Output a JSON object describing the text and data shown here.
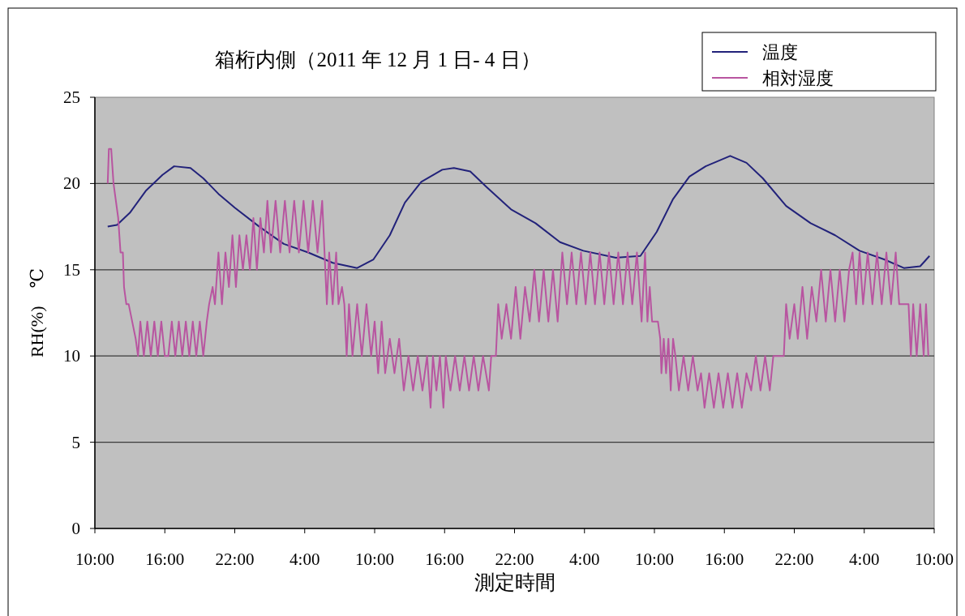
{
  "chart_data": {
    "type": "line",
    "title": "箱桁内側（2011 年 12 月 1 日- 4 日）",
    "xlabel": "測定時間",
    "ylabel": "RH(%)　℃",
    "xlim": [
      "2011-12-01T10:00",
      "2011-12-04T10:00"
    ],
    "xticks": [
      {
        "value": "2011-12-01T10:00",
        "label": "10:00"
      },
      {
        "value": "2011-12-01T16:00",
        "label": "16:00"
      },
      {
        "value": "2011-12-01T22:00",
        "label": "22:00"
      },
      {
        "value": "2011-12-02T04:00",
        "label": "4:00"
      },
      {
        "value": "2011-12-02T10:00",
        "label": "10:00"
      },
      {
        "value": "2011-12-02T16:00",
        "label": "16:00"
      },
      {
        "value": "2011-12-02T22:00",
        "label": "22:00"
      },
      {
        "value": "2011-12-03T04:00",
        "label": "4:00"
      },
      {
        "value": "2011-12-03T10:00",
        "label": "10:00"
      },
      {
        "value": "2011-12-03T16:00",
        "label": "16:00"
      },
      {
        "value": "2011-12-03T22:00",
        "label": "22:00"
      },
      {
        "value": "2011-12-04T04:00",
        "label": "4:00"
      },
      {
        "value": "2011-12-04T10:00",
        "label": "10:00"
      }
    ],
    "ylim": [
      0,
      25
    ],
    "yticks": [
      0,
      5,
      10,
      15,
      20,
      25
    ],
    "grid": "y",
    "legend": "top right",
    "series": [
      {
        "name": "温度",
        "color": "#22227a",
        "x": [
          "2011-12-01T11:06",
          "2011-12-01T11:54",
          "2011-12-01T13:00",
          "2011-12-01T14:24",
          "2011-12-01T15:48",
          "2011-12-01T16:48",
          "2011-12-01T18:12",
          "2011-12-01T19:18",
          "2011-12-01T20:36",
          "2011-12-01T22:00",
          "2011-12-02T00:06",
          "2011-12-02T02:12",
          "2011-12-02T04:18",
          "2011-12-02T06:24",
          "2011-12-02T08:30",
          "2011-12-02T09:54",
          "2011-12-02T11:18",
          "2011-12-02T12:36",
          "2011-12-02T14:00",
          "2011-12-02T15:48",
          "2011-12-02T16:48",
          "2011-12-02T18:12",
          "2011-12-02T19:36",
          "2011-12-02T21:42",
          "2011-12-02T23:48",
          "2011-12-03T01:54",
          "2011-12-03T03:54",
          "2011-12-03T06:42",
          "2011-12-03T08:48",
          "2011-12-03T10:12",
          "2011-12-03T11:36",
          "2011-12-03T13:00",
          "2011-12-03T14:24",
          "2011-12-03T16:30",
          "2011-12-03T17:54",
          "2011-12-03T19:18",
          "2011-12-03T21:18",
          "2011-12-03T23:24",
          "2011-12-04T01:30",
          "2011-12-04T03:36",
          "2011-12-04T05:42",
          "2011-12-04T07:24",
          "2011-12-04T08:48",
          "2011-12-04T09:36"
        ],
        "values": [
          17.5,
          17.6,
          18.3,
          19.6,
          20.5,
          21.0,
          20.9,
          20.3,
          19.4,
          18.6,
          17.5,
          16.5,
          16.0,
          15.4,
          15.1,
          15.6,
          17.0,
          18.9,
          20.1,
          20.8,
          20.9,
          20.7,
          19.8,
          18.5,
          17.7,
          16.6,
          16.1,
          15.7,
          15.8,
          17.2,
          19.1,
          20.4,
          21.0,
          21.6,
          21.2,
          20.3,
          18.7,
          17.7,
          17.0,
          16.1,
          15.6,
          15.1,
          15.2,
          15.8
        ]
      },
      {
        "name": "相対湿度",
        "color": "#b855a0",
        "x": [
          "2011-12-01T11:06",
          "2011-12-01T11:12",
          "2011-12-01T11:24",
          "2011-12-01T11:36",
          "2011-12-01T11:48",
          "2011-12-01T12:00",
          "2011-12-01T12:12",
          "2011-12-01T12:24",
          "2011-12-01T12:30",
          "2011-12-01T12:42",
          "2011-12-01T12:54",
          "2011-12-01T13:12",
          "2011-12-01T13:30",
          "2011-12-01T13:42",
          "2011-12-01T13:54",
          "2011-12-01T14:12",
          "2011-12-01T14:30",
          "2011-12-01T14:48",
          "2011-12-01T15:06",
          "2011-12-01T15:24",
          "2011-12-01T15:42",
          "2011-12-01T16:00",
          "2011-12-01T16:18",
          "2011-12-01T16:36",
          "2011-12-01T16:54",
          "2011-12-01T17:12",
          "2011-12-01T17:30",
          "2011-12-01T17:48",
          "2011-12-01T18:06",
          "2011-12-01T18:24",
          "2011-12-01T18:42",
          "2011-12-01T19:00",
          "2011-12-01T19:18",
          "2011-12-01T19:36",
          "2011-12-01T19:48",
          "2011-12-01T20:06",
          "2011-12-01T20:18",
          "2011-12-01T20:36",
          "2011-12-01T20:54",
          "2011-12-01T21:12",
          "2011-12-01T21:30",
          "2011-12-01T21:48",
          "2011-12-01T22:06",
          "2011-12-01T22:24",
          "2011-12-01T22:42",
          "2011-12-01T23:00",
          "2011-12-01T23:18",
          "2011-12-01T23:36",
          "2011-12-01T23:54",
          "2011-12-02T00:12",
          "2011-12-02T00:30",
          "2011-12-02T00:48",
          "2011-12-02T01:06",
          "2011-12-02T01:30",
          "2011-12-02T01:54",
          "2011-12-02T02:18",
          "2011-12-02T02:42",
          "2011-12-02T03:06",
          "2011-12-02T03:30",
          "2011-12-02T03:54",
          "2011-12-02T04:18",
          "2011-12-02T04:42",
          "2011-12-02T05:06",
          "2011-12-02T05:30",
          "2011-12-02T05:42",
          "2011-12-02T05:54",
          "2011-12-02T06:06",
          "2011-12-02T06:24",
          "2011-12-02T06:42",
          "2011-12-02T06:54",
          "2011-12-02T07:12",
          "2011-12-02T07:24",
          "2011-12-02T07:36",
          "2011-12-02T07:48",
          "2011-12-02T08:06",
          "2011-12-02T08:30",
          "2011-12-02T08:54",
          "2011-12-02T09:18",
          "2011-12-02T09:42",
          "2011-12-02T10:00",
          "2011-12-02T10:18",
          "2011-12-02T10:36",
          "2011-12-02T10:54",
          "2011-12-02T11:18",
          "2011-12-02T11:42",
          "2011-12-02T12:06",
          "2011-12-02T12:30",
          "2011-12-02T12:54",
          "2011-12-02T13:18",
          "2011-12-02T13:42",
          "2011-12-02T14:06",
          "2011-12-02T14:30",
          "2011-12-02T14:48",
          "2011-12-02T15:00",
          "2011-12-02T15:18",
          "2011-12-02T15:36",
          "2011-12-02T15:54",
          "2011-12-02T16:06",
          "2011-12-02T16:30",
          "2011-12-02T16:54",
          "2011-12-02T17:18",
          "2011-12-02T17:42",
          "2011-12-02T18:06",
          "2011-12-02T18:30",
          "2011-12-02T18:54",
          "2011-12-02T19:18",
          "2011-12-02T19:48",
          "2011-12-02T20:00",
          "2011-12-02T20:24",
          "2011-12-02T20:36",
          "2011-12-02T20:54",
          "2011-12-02T21:18",
          "2011-12-02T21:42",
          "2011-12-02T22:06",
          "2011-12-02T22:30",
          "2011-12-02T22:54",
          "2011-12-02T23:18",
          "2011-12-02T23:42",
          "2011-12-03T00:06",
          "2011-12-03T00:30",
          "2011-12-03T00:54",
          "2011-12-03T01:18",
          "2011-12-03T01:42",
          "2011-12-03T02:06",
          "2011-12-03T02:30",
          "2011-12-03T02:54",
          "2011-12-03T03:18",
          "2011-12-03T03:42",
          "2011-12-03T04:06",
          "2011-12-03T04:30",
          "2011-12-03T04:54",
          "2011-12-03T05:18",
          "2011-12-03T05:42",
          "2011-12-03T06:06",
          "2011-12-03T06:30",
          "2011-12-03T06:54",
          "2011-12-03T07:18",
          "2011-12-03T07:42",
          "2011-12-03T08:06",
          "2011-12-03T08:30",
          "2011-12-03T08:54",
          "2011-12-03T09:12",
          "2011-12-03T09:24",
          "2011-12-03T09:36",
          "2011-12-03T09:48",
          "2011-12-03T10:18",
          "2011-12-03T10:30",
          "2011-12-03T10:36",
          "2011-12-03T10:48",
          "2011-12-03T11:00",
          "2011-12-03T11:12",
          "2011-12-03T11:24",
          "2011-12-03T11:36",
          "2011-12-03T11:48",
          "2011-12-03T12:06",
          "2011-12-03T12:30",
          "2011-12-03T12:54",
          "2011-12-03T13:18",
          "2011-12-03T13:42",
          "2011-12-03T14:00",
          "2011-12-03T14:18",
          "2011-12-03T14:42",
          "2011-12-03T15:06",
          "2011-12-03T15:30",
          "2011-12-03T15:54",
          "2011-12-03T16:18",
          "2011-12-03T16:42",
          "2011-12-03T17:06",
          "2011-12-03T17:30",
          "2011-12-03T17:54",
          "2011-12-03T18:18",
          "2011-12-03T18:42",
          "2011-12-03T19:06",
          "2011-12-03T19:30",
          "2011-12-03T19:54",
          "2011-12-03T20:12",
          "2011-12-03T21:06",
          "2011-12-03T21:18",
          "2011-12-03T21:36",
          "2011-12-03T22:00",
          "2011-12-03T22:18",
          "2011-12-03T22:42",
          "2011-12-03T23:06",
          "2011-12-03T23:30",
          "2011-12-03T23:54",
          "2011-12-04T00:18",
          "2011-12-04T00:42",
          "2011-12-04T01:06",
          "2011-12-04T01:30",
          "2011-12-04T01:54",
          "2011-12-04T02:18",
          "2011-12-04T02:42",
          "2011-12-04T03:00",
          "2011-12-04T03:18",
          "2011-12-04T03:36",
          "2011-12-04T03:54",
          "2011-12-04T04:18",
          "2011-12-04T04:42",
          "2011-12-04T05:06",
          "2011-12-04T05:30",
          "2011-12-04T05:54",
          "2011-12-04T06:18",
          "2011-12-04T06:42",
          "2011-12-04T07:00",
          "2011-12-04T07:48",
          "2011-12-04T08:00",
          "2011-12-04T08:12",
          "2011-12-04T08:30",
          "2011-12-04T08:48",
          "2011-12-04T09:06",
          "2011-12-04T09:18",
          "2011-12-04T09:30"
        ],
        "values": [
          20,
          22,
          22,
          20,
          19,
          18,
          16,
          16,
          14,
          13,
          13,
          12,
          11,
          10,
          12,
          10,
          12,
          10,
          12,
          10,
          12,
          10,
          10,
          12,
          10,
          12,
          10,
          12,
          10,
          12,
          10,
          12,
          10,
          12,
          13,
          14,
          13,
          16,
          13,
          16,
          14,
          17,
          14,
          17,
          15,
          17,
          15,
          18,
          15,
          18,
          16,
          19,
          16,
          19,
          16,
          19,
          16,
          19,
          16,
          19,
          16,
          19,
          16,
          19,
          16,
          13,
          16,
          13,
          16,
          13,
          14,
          13,
          10,
          13,
          10,
          13,
          10,
          13,
          10,
          12,
          9,
          12,
          9,
          11,
          9,
          11,
          8,
          10,
          8,
          10,
          8,
          10,
          7,
          10,
          8,
          10,
          7,
          10,
          8,
          10,
          8,
          10,
          8,
          10,
          8,
          10,
          8,
          10,
          10,
          13,
          11,
          13,
          11,
          14,
          11,
          14,
          12,
          15,
          12,
          15,
          12,
          15,
          12,
          16,
          13,
          16,
          13,
          16,
          13,
          16,
          13,
          16,
          13,
          16,
          13,
          16,
          13,
          16,
          13,
          16,
          12,
          16,
          12,
          14,
          12,
          12,
          11,
          9,
          11,
          9,
          11,
          8,
          11,
          10,
          8,
          10,
          8,
          10,
          8,
          9,
          7,
          9,
          7,
          9,
          7,
          9,
          7,
          9,
          7,
          9,
          8,
          10,
          8,
          10,
          8,
          10,
          10,
          13,
          11,
          13,
          11,
          14,
          11,
          14,
          12,
          15,
          12,
          15,
          12,
          15,
          12,
          15,
          16,
          13,
          16,
          13,
          16,
          13,
          16,
          13,
          16,
          13,
          16,
          13,
          13,
          10,
          13,
          10,
          13,
          10,
          13,
          10
        ]
      }
    ]
  }
}
